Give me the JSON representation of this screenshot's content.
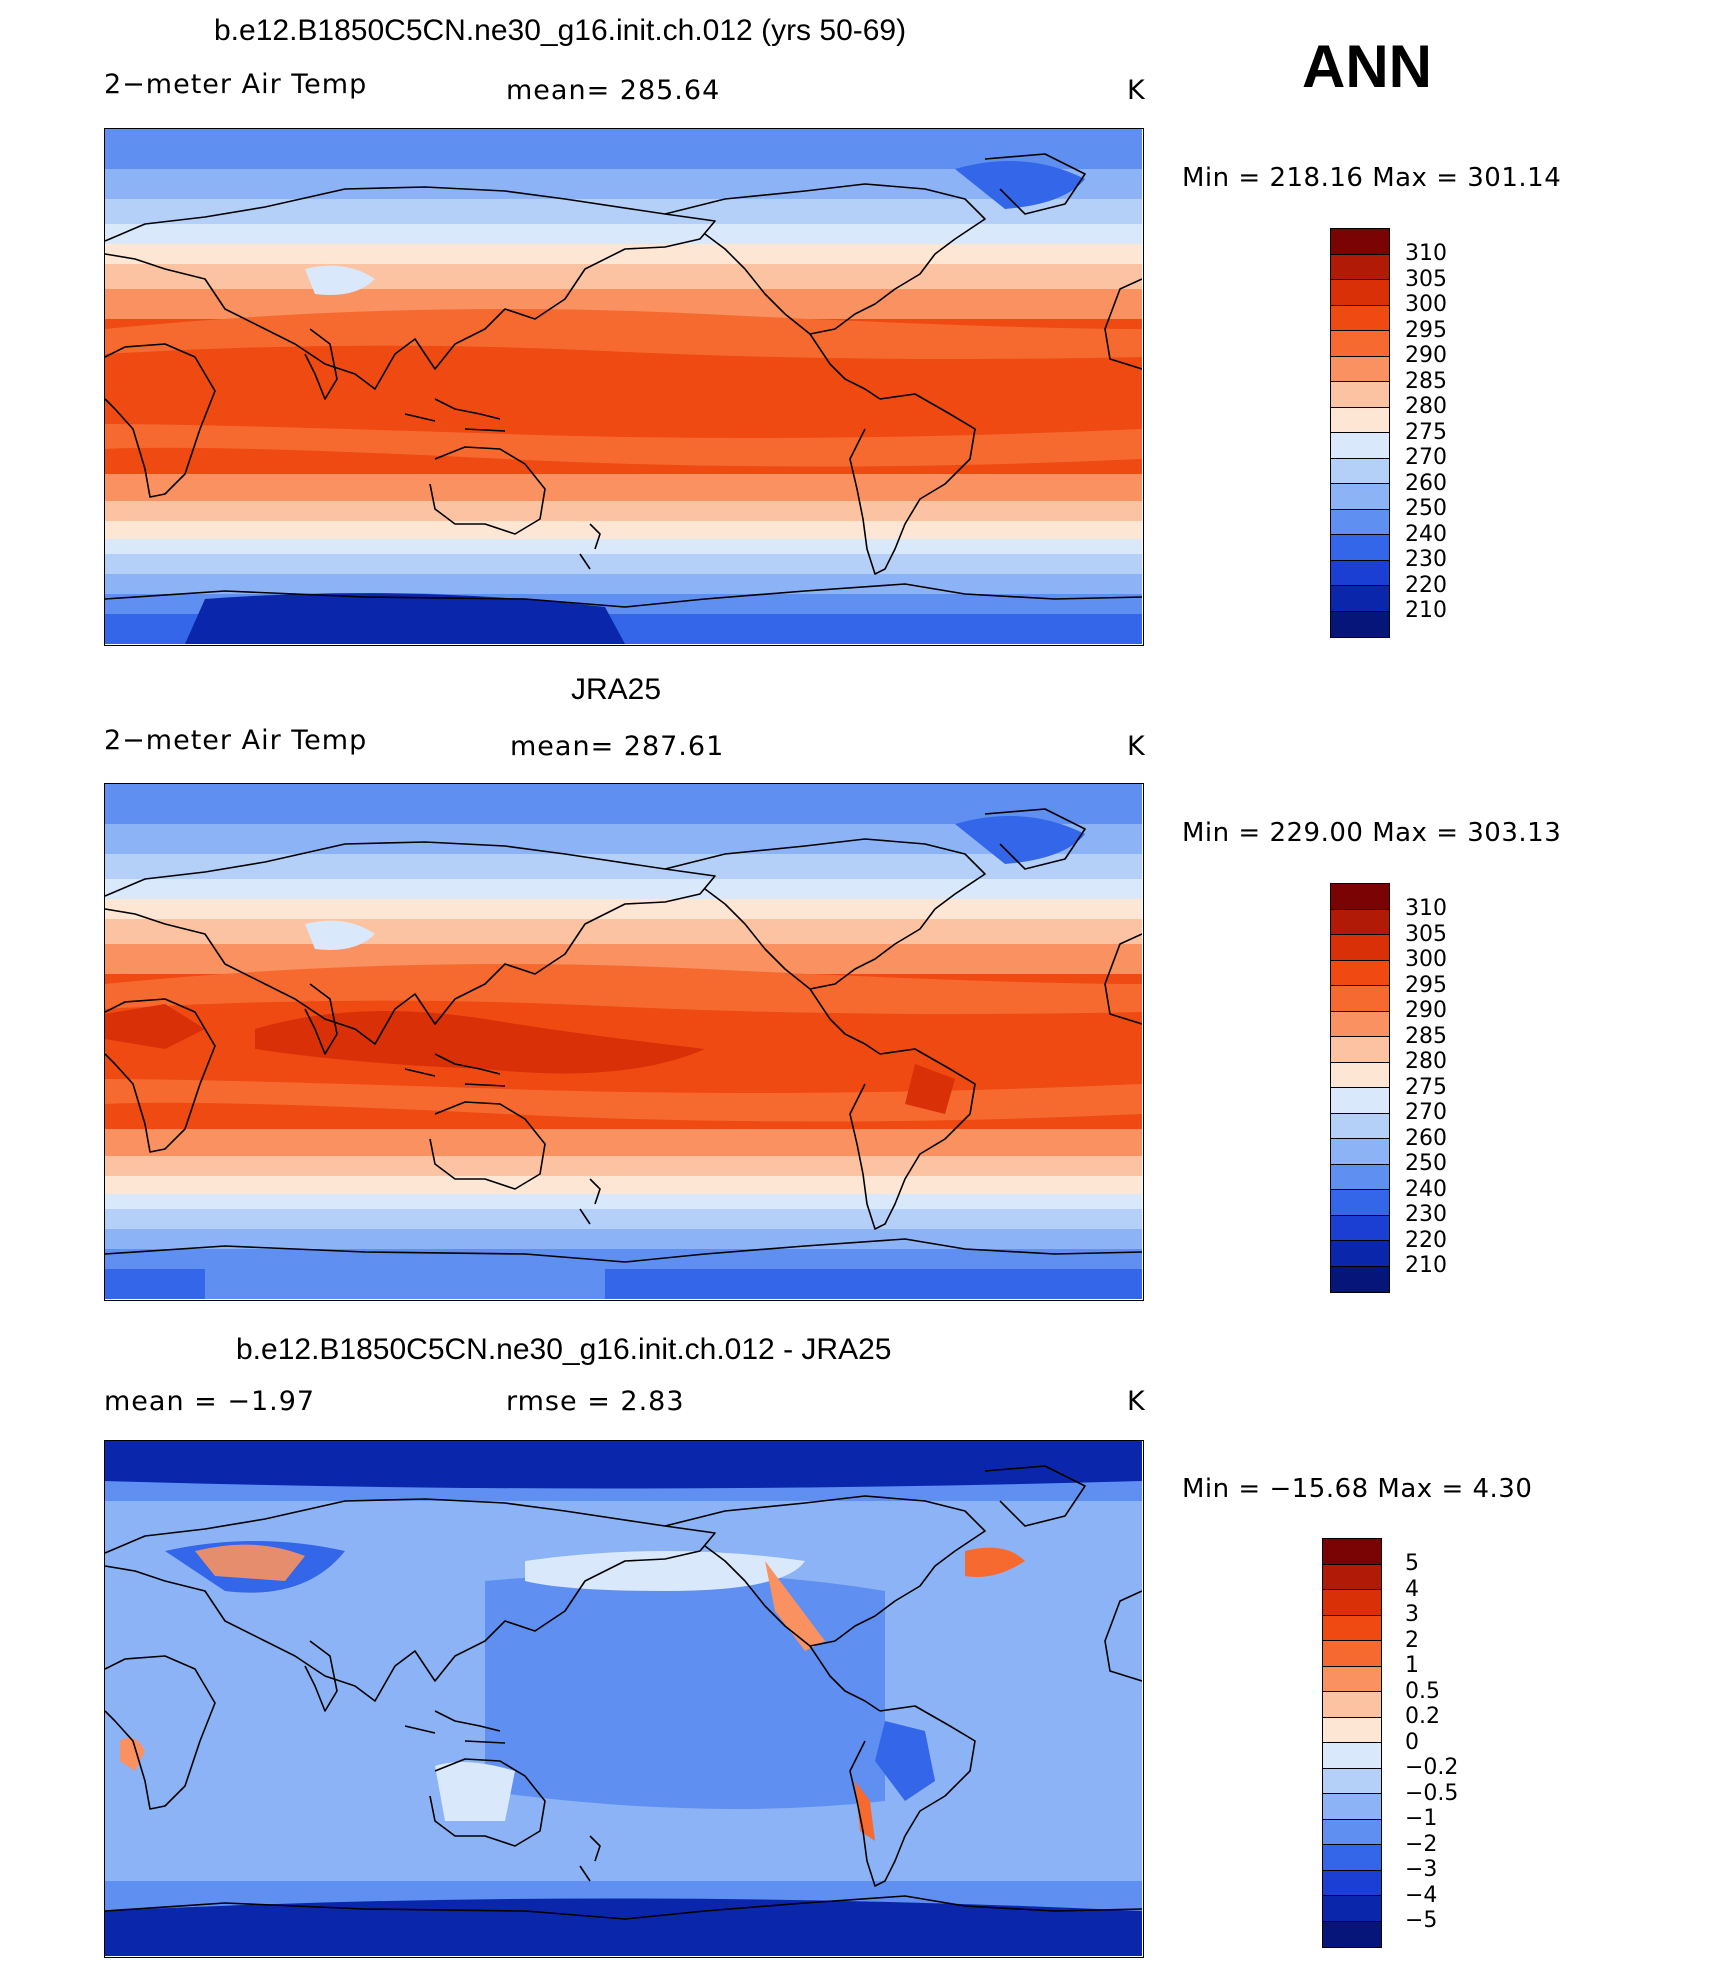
{
  "season": "ANN",
  "panels": [
    {
      "title": "b.e12.B1850C5CN.ne30_g16.init.ch.012 (yrs 50-69)",
      "variable": "2−meter Air Temp",
      "stat": "mean=  285.64",
      "units": "K",
      "minmax": "Min  =  218.16  Max  =  301.14",
      "levels": [
        "310",
        "305",
        "300",
        "295",
        "290",
        "285",
        "280",
        "275",
        "270",
        "260",
        "250",
        "240",
        "230",
        "220",
        "210"
      ],
      "field": "model"
    },
    {
      "title": "JRA25",
      "variable": "2−meter Air Temp",
      "stat": "mean=  287.61",
      "units": "K",
      "minmax": "Min  =  229.00  Max  =  303.13",
      "levels": [
        "310",
        "305",
        "300",
        "295",
        "290",
        "285",
        "280",
        "275",
        "270",
        "260",
        "250",
        "240",
        "230",
        "220",
        "210"
      ],
      "field": "obs"
    },
    {
      "title": "b.e12.B1850C5CN.ne30_g16.init.ch.012 - JRA25",
      "variable": "mean =    −1.97",
      "stat": "rmse =     2.83",
      "units": "K",
      "minmax": "Min  =  −15.68  Max  =     4.30",
      "levels": [
        "5",
        "4",
        "3",
        "2",
        "1",
        "0.5",
        "0.2",
        "0",
        "−0.2",
        "−0.5",
        "−1",
        "−2",
        "−3",
        "−4",
        "−5"
      ],
      "field": "diff"
    }
  ],
  "colors": {
    "colorbar_top_to_bottom": [
      "#7a0403",
      "#b01a06",
      "#d93008",
      "#ee4a12",
      "#f66a30",
      "#fa9160",
      "#fcc3a2",
      "#fde7d4",
      "#d9e8fb",
      "#b4d0f8",
      "#8cb3f5",
      "#5f8ff0",
      "#3366e8",
      "#1a3fd2",
      "#0a26ab",
      "#06157a"
    ]
  }
}
